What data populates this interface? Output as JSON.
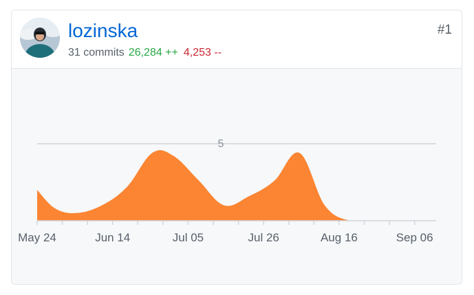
{
  "contributor": {
    "username": "lozinska",
    "commits_text": "31 commits",
    "additions_text": "26,284 ++",
    "deletions_text": "4,253 --",
    "rank_text": "#1",
    "avatar_icon": "user-avatar-photo"
  },
  "colors": {
    "link": "#0366d6",
    "additions": "#28a745",
    "deletions": "#cb2431",
    "area_fill": "#fb8532",
    "gridline": "#d1d5da",
    "chart_background": "#f6f8fa"
  },
  "chart_data": {
    "type": "area",
    "title": "",
    "xlabel": "",
    "ylabel": "",
    "ylim": [
      0,
      5
    ],
    "yticks": [
      "5"
    ],
    "xtick_labels": [
      "May 24",
      "Jun 14",
      "Jul 05",
      "Jul 26",
      "Aug 16",
      "Sep 06"
    ],
    "grid": true,
    "series": [
      {
        "values": [
          {
            "x": "2020-05-24",
            "y": 2.0
          },
          {
            "x": "2020-05-29",
            "y": 0.8
          },
          {
            "x": "2020-06-04",
            "y": 0.5
          },
          {
            "x": "2020-06-11",
            "y": 1.0
          },
          {
            "x": "2020-06-18",
            "y": 2.2
          },
          {
            "x": "2020-06-25",
            "y": 4.4
          },
          {
            "x": "2020-07-01",
            "y": 4.2
          },
          {
            "x": "2020-07-08",
            "y": 2.6
          },
          {
            "x": "2020-07-15",
            "y": 1.0
          },
          {
            "x": "2020-07-22",
            "y": 1.6
          },
          {
            "x": "2020-07-29",
            "y": 2.6
          },
          {
            "x": "2020-08-05",
            "y": 4.4
          },
          {
            "x": "2020-08-12",
            "y": 1.0
          },
          {
            "x": "2020-08-19",
            "y": 0.0
          },
          {
            "x": "2020-08-26",
            "y": 0.0
          },
          {
            "x": "2020-09-02",
            "y": 0.0
          },
          {
            "x": "2020-09-09",
            "y": 0.0
          }
        ]
      }
    ]
  }
}
